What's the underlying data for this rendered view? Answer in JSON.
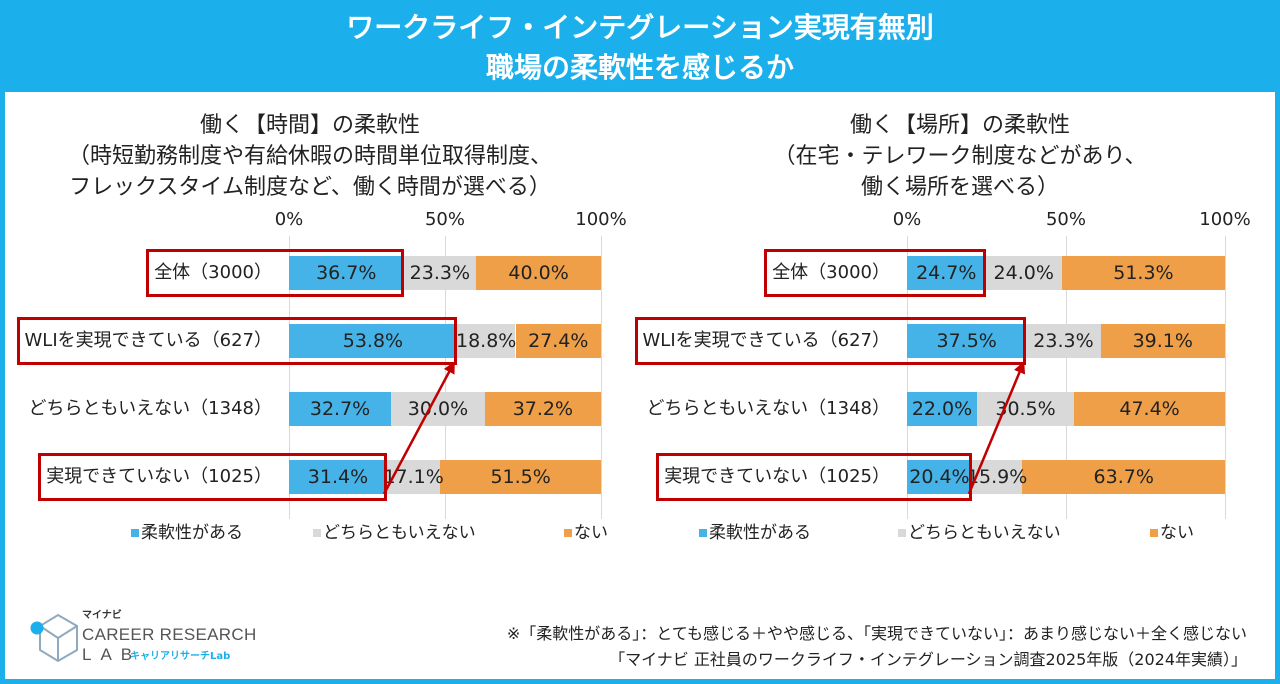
{
  "header": {
    "title_line1": "ワークライフ・インテグレーション実現有無別",
    "title_line2": "職場の柔軟性を感じるか"
  },
  "colors": {
    "banner": "#1BB0EB",
    "highlight": "#C00000"
  },
  "chart_data": [
    {
      "type": "bar",
      "orientation": "horizontal",
      "stacked": true,
      "title": "働く【時間】の柔軟性",
      "subtitle": [
        "（時短勤務制度や有給休暇の時間単位取得制度、",
        "フレックスタイム制度など、働く時間が選べる）"
      ],
      "categories": [
        "全体（3000）",
        "WLIを実現できている（627）",
        "どちらともいえない（1348）",
        "実現できていない（1025）"
      ],
      "series": [
        {
          "name": "柔軟性がある",
          "color": "#45B3E7",
          "values": [
            36.7,
            53.8,
            32.7,
            31.4
          ]
        },
        {
          "name": "どちらともいえない",
          "color": "#D9D9D9",
          "values": [
            23.3,
            18.8,
            30.0,
            17.1
          ]
        },
        {
          "name": "ない",
          "color": "#EF9F47",
          "values": [
            40.0,
            27.4,
            37.2,
            51.5
          ]
        }
      ],
      "xlim": [
        0,
        100
      ],
      "tick_values": [
        0,
        50,
        100
      ],
      "tick_labels": [
        "0%",
        "50%",
        "100%"
      ],
      "grid": true,
      "legend": "bottom",
      "highlight_rows": [
        0,
        1,
        3
      ],
      "arrow": {
        "from_row": 3,
        "to_row": 1
      }
    },
    {
      "type": "bar",
      "orientation": "horizontal",
      "stacked": true,
      "title": "働く【場所】の柔軟性",
      "subtitle": [
        "（在宅・テレワーク制度などがあり、",
        "働く場所を選べる）"
      ],
      "categories": [
        "全体（3000）",
        "WLIを実現できている（627）",
        "どちらともいえない（1348）",
        "実現できていない（1025）"
      ],
      "series": [
        {
          "name": "柔軟性がある",
          "color": "#45B3E7",
          "values": [
            24.7,
            37.5,
            22.0,
            20.4
          ]
        },
        {
          "name": "どちらともいえない",
          "color": "#D9D9D9",
          "values": [
            24.0,
            23.3,
            30.5,
            15.9
          ]
        },
        {
          "name": "ない",
          "color": "#EF9F47",
          "values": [
            51.3,
            39.1,
            47.4,
            63.7
          ]
        }
      ],
      "xlim": [
        0,
        100
      ],
      "tick_values": [
        0,
        50,
        100
      ],
      "tick_labels": [
        "0%",
        "50%",
        "100%"
      ],
      "grid": true,
      "legend": "bottom",
      "highlight_rows": [
        0,
        1,
        3
      ],
      "arrow": {
        "from_row": 3,
        "to_row": 1
      }
    }
  ],
  "footnote": {
    "line1": "※「柔軟性がある」：とても感じる＋やや感じる、「実現できていない」：あまり感じない＋全く感じない",
    "line2": "「マイナビ 正社員のワークライフ・インテグレーション調査2025年版（2024年実績）」"
  },
  "logo": {
    "brand": "マイナビ",
    "line1": "CAREER RESEARCH",
    "line2": "LAB",
    "tagline": "キャリアリサーチLab"
  }
}
